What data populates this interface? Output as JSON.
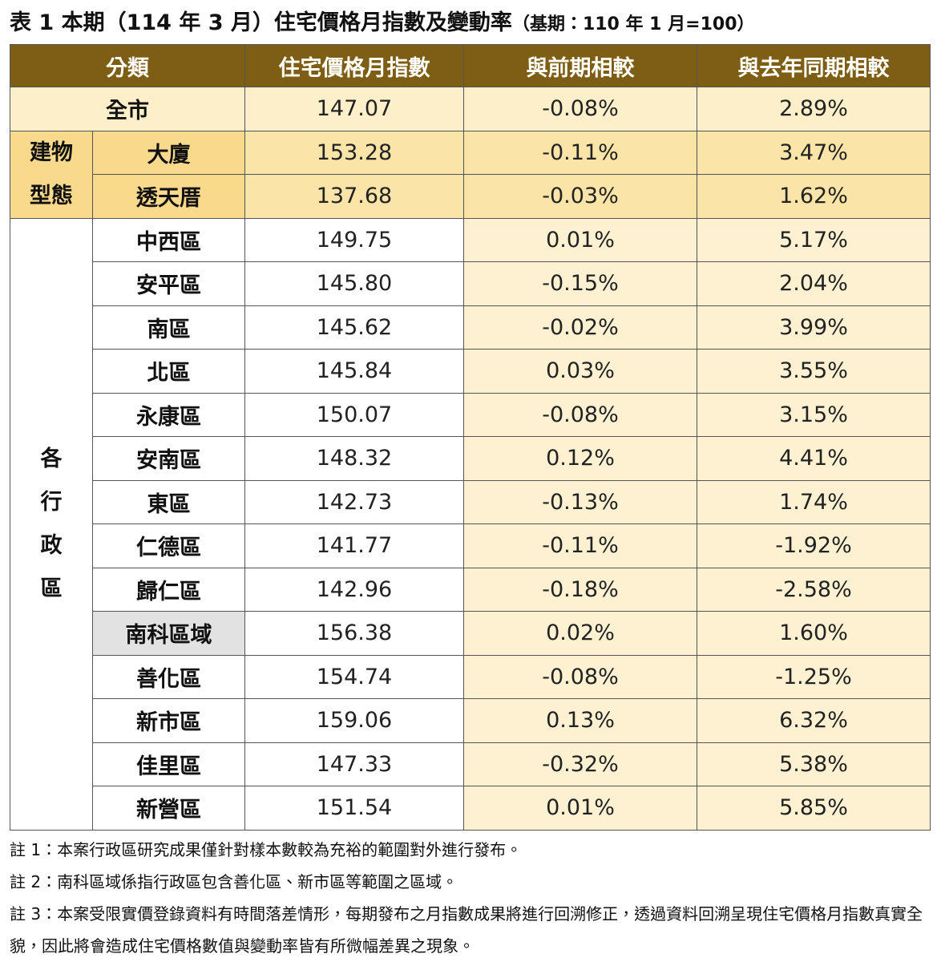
{
  "title": {
    "main": "表 1 本期（114 年 3 月）住宅價格月指數及變動率",
    "sub": "（基期：110 年 1 月=100）"
  },
  "table": {
    "headers": [
      "分類",
      "住宅價格月指數",
      "與前期相較",
      "與去年同期相較"
    ],
    "rows": [
      {
        "label": "全市",
        "index": "147.07",
        "mom": "-0.08%",
        "yoy": "2.89%"
      },
      {
        "group": "建物型態",
        "label": "大廈",
        "index": "153.28",
        "mom": "-0.11%",
        "yoy": "3.47%"
      },
      {
        "label": "透天厝",
        "index": "137.68",
        "mom": "-0.03%",
        "yoy": "1.62%"
      },
      {
        "group": "各行政區",
        "label": "中西區",
        "index": "149.75",
        "mom": "0.01%",
        "yoy": "5.17%"
      },
      {
        "label": "安平區",
        "index": "145.80",
        "mom": "-0.15%",
        "yoy": "2.04%"
      },
      {
        "label": "南區",
        "index": "145.62",
        "mom": "-0.02%",
        "yoy": "3.99%"
      },
      {
        "label": "北區",
        "index": "145.84",
        "mom": "0.03%",
        "yoy": "3.55%"
      },
      {
        "label": "永康區",
        "index": "150.07",
        "mom": "-0.08%",
        "yoy": "3.15%"
      },
      {
        "label": "安南區",
        "index": "148.32",
        "mom": "0.12%",
        "yoy": "4.41%"
      },
      {
        "label": "東區",
        "index": "142.73",
        "mom": "-0.13%",
        "yoy": "1.74%"
      },
      {
        "label": "仁德區",
        "index": "141.77",
        "mom": "-0.11%",
        "yoy": "-1.92%"
      },
      {
        "label": "歸仁區",
        "index": "142.96",
        "mom": "-0.18%",
        "yoy": "-2.58%"
      },
      {
        "label": "南科區域",
        "index": "156.38",
        "mom": "0.02%",
        "yoy": "1.60%"
      },
      {
        "label": "善化區",
        "index": "154.74",
        "mom": "-0.08%",
        "yoy": "-1.25%"
      },
      {
        "label": "新市區",
        "index": "159.06",
        "mom": "0.13%",
        "yoy": "6.32%"
      },
      {
        "label": "佳里區",
        "index": "147.33",
        "mom": "-0.32%",
        "yoy": "5.38%"
      },
      {
        "label": "新營區",
        "index": "151.54",
        "mom": "0.01%",
        "yoy": "5.85%"
      }
    ]
  },
  "notes": [
    "註 1：本案行政區研究成果僅針對樣本數較為充裕的範圍對外進行發布。",
    "註 2：南科區域係指行政區包含善化區、新市區等範圍之區域。",
    "註 3：本案受限實價登錄資料有時間落差情形，每期發布之月指數成果將進行回溯修正，透過資料回溯呈現住宅價格月指數真實全貌，因此將會造成住宅價格數值與變動率皆有所微幅差異之現象。"
  ]
}
